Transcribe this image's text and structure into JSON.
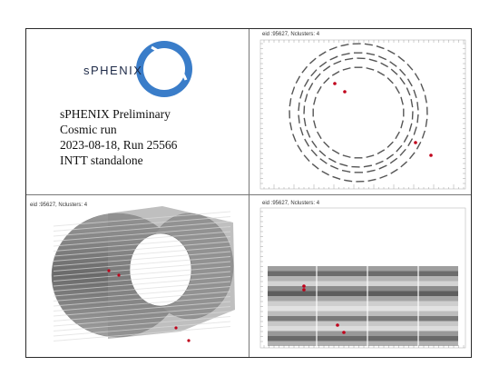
{
  "logo": {
    "text": "sPHENIX",
    "circle_color": "#3a7dc9"
  },
  "info": {
    "lines": [
      "sPHENIX Preliminary",
      "Cosmic run",
      "2023-08-18, Run 25566",
      "INTT standalone"
    ]
  },
  "panels": {
    "xy": {
      "title": "eid :95627, Nclusters: 4"
    },
    "threed": {
      "title": "eid :95627, Nclusters: 4"
    },
    "zy": {
      "title": "eid :95627, Nclusters: 4"
    }
  },
  "colors": {
    "ladder": "#555555",
    "hit": "#c0001a",
    "frame": "#2a2a2a"
  }
}
